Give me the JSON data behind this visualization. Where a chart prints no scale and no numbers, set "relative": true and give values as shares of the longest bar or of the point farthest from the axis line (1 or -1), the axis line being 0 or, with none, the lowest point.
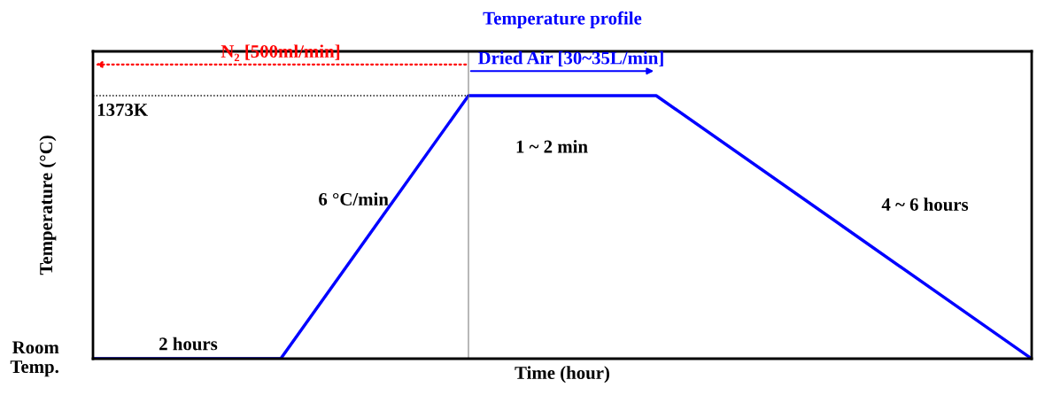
{
  "chart_data": {
    "type": "line",
    "title": "Temperature profile",
    "xlabel": "Time (hour)",
    "ylabel": "Temperature (°C)",
    "relative": true,
    "categories": [
      null,
      null,
      null,
      null,
      null,
      null
    ],
    "series": [
      {
        "color": "#0000ff",
        "values": [
          0,
          0,
          1,
          1,
          0.5,
          0
        ]
      }
    ],
    "annotations": [
      "N₂ [500ml/min]",
      "Dried Air [30~35L/min]",
      "Room Temp.",
      "1373K",
      "2 hours",
      "6 °C/min",
      "1 ~ 2 min",
      "4 ~ 6 hours"
    ],
    "legend": false
  }
}
